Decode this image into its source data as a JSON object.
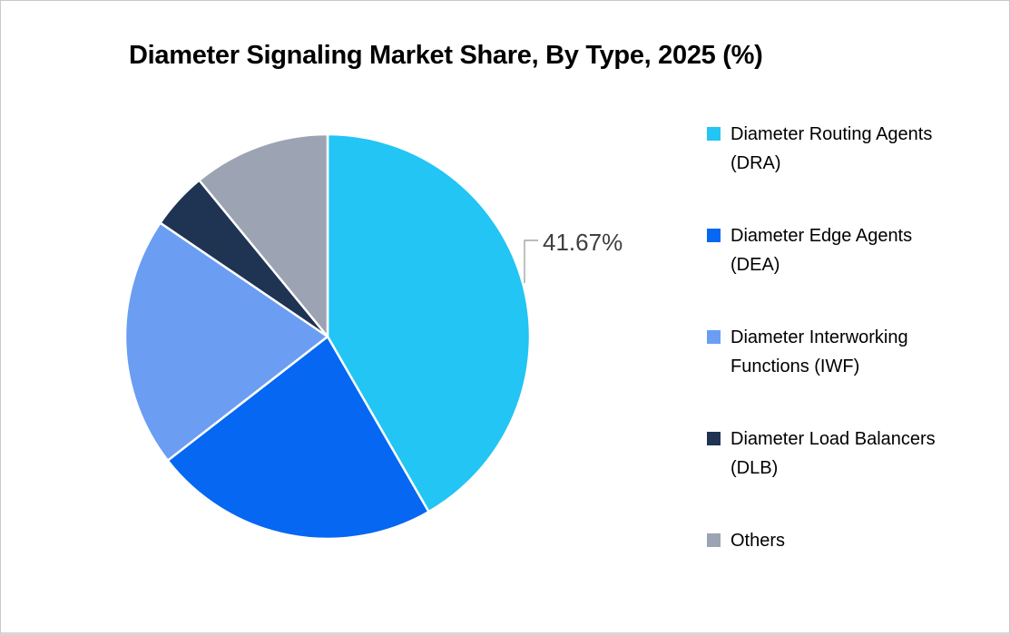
{
  "page": {
    "background": "#FFFFFF",
    "border_color": "#C9C9C9"
  },
  "chart_data": {
    "type": "pie",
    "title": "Diameter Signaling Market Share, By Type, 2025 (%)",
    "categories": [
      "Diameter Routing Agents (DRA)",
      "Diameter Edge Agents (DEA)",
      "Diameter Interworking Functions (IWF)",
      "Diameter Load Balancers (DLB)",
      "Others"
    ],
    "values": [
      41.67,
      22.83,
      20.0,
      4.56,
      10.94
    ],
    "colors": [
      "#22C5F3",
      "#0567F2",
      "#6B9EF2",
      "#1F3353",
      "#9CA3B2"
    ],
    "data_label": {
      "text": "41.67%",
      "slice_index": 0
    },
    "labeled_value_only": "41.67%",
    "start_angle_deg": 0,
    "direction": "clockwise",
    "legend_position": "right",
    "slice_gap_color": "#FFFFFF",
    "leader_line_color": "#A6A6A6",
    "label_text_color": "#3F3F3F"
  }
}
